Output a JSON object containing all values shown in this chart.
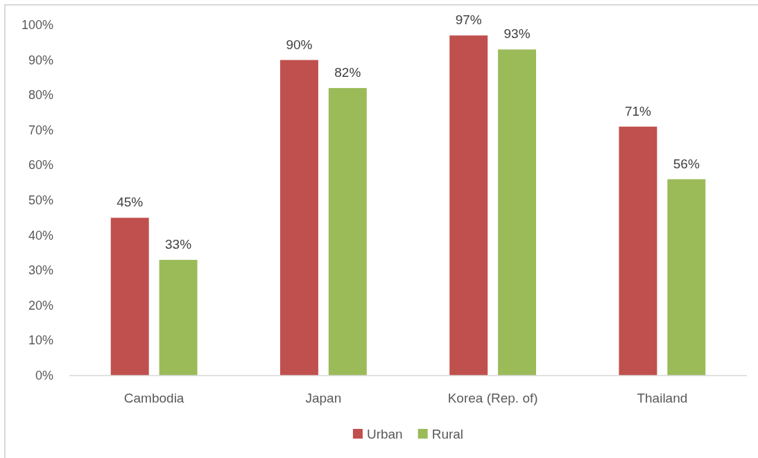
{
  "chart_data": {
    "type": "bar",
    "categories": [
      "Cambodia",
      "Japan",
      "Korea (Rep. of)",
      "Thailand"
    ],
    "series": [
      {
        "name": "Urban",
        "color": "#c0504d",
        "values": [
          45,
          90,
          97,
          71
        ],
        "value_labels": [
          "45%",
          "90%",
          "97%",
          "71%"
        ]
      },
      {
        "name": "Rural",
        "color": "#9bbb59",
        "values": [
          33,
          82,
          93,
          56
        ],
        "value_labels": [
          "33%",
          "82%",
          "93%",
          "56%"
        ]
      }
    ],
    "ylim": [
      0,
      100
    ],
    "yticks": [
      {
        "value": 0,
        "label": "0%"
      },
      {
        "value": 10,
        "label": "10%"
      },
      {
        "value": 20,
        "label": "20%"
      },
      {
        "value": 30,
        "label": "30%"
      },
      {
        "value": 40,
        "label": "40%"
      },
      {
        "value": 50,
        "label": "50%"
      },
      {
        "value": 60,
        "label": "60%"
      },
      {
        "value": 70,
        "label": "70%"
      },
      {
        "value": 80,
        "label": "80%"
      },
      {
        "value": 90,
        "label": "90%"
      },
      {
        "value": 100,
        "label": "100%"
      }
    ],
    "legend": "bottom"
  }
}
